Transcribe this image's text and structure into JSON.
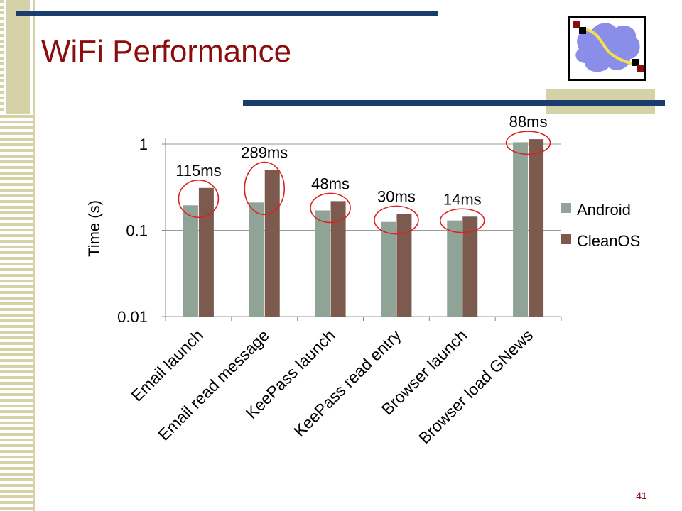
{
  "slide": {
    "title": "WiFi Performance",
    "page_number": "41"
  },
  "colors": {
    "title": "#8b0d0d",
    "accent_bar": "#1b3d6e",
    "stripe": "#d6d2a8",
    "android": "#8fa396",
    "cleanos": "#7d5a4e",
    "highlight_circle": "#e02020",
    "logo_cloud": "#8a8ee8",
    "logo_path": "#f4e04a"
  },
  "logo": {
    "icon": "network-cloud-logo-icon"
  },
  "chart_data": {
    "type": "bar",
    "title": "",
    "ylabel": "Time (s)",
    "xlabel": "",
    "y_scale": "log",
    "ylim": [
      0.01,
      1
    ],
    "y_ticks": [
      {
        "value": 1,
        "label": "1"
      },
      {
        "value": 0.1,
        "label": "0.1"
      },
      {
        "value": 0.01,
        "label": "0.01"
      }
    ],
    "grid": true,
    "legend_position": "right",
    "categories": [
      "Email launch",
      "Email read message",
      "KeePass launch",
      "KeePass read entry",
      "Browser launch",
      "Browser load GNews"
    ],
    "series": [
      {
        "name": "Android",
        "values": [
          0.195,
          0.21,
          0.17,
          0.125,
          0.13,
          1.05
        ]
      },
      {
        "name": "CleanOS",
        "values": [
          0.31,
          0.5,
          0.218,
          0.155,
          0.144,
          1.14
        ]
      }
    ],
    "annotations": [
      "115ms",
      "289ms",
      "48ms",
      "30ms",
      "14ms",
      "88ms"
    ]
  }
}
